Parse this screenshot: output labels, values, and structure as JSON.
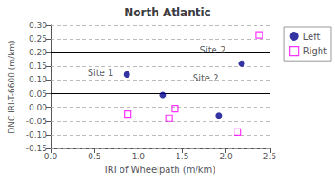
{
  "chart_data": {
    "type": "scatter",
    "title": "North Atlantic",
    "xlabel": "IRI of Wheelpath (m/km)",
    "ylabel": "DNC IRI-T-6600 (m/km)",
    "xlim": [
      0.0,
      2.5
    ],
    "ylim": [
      -0.15,
      0.3
    ],
    "xticks": [
      {
        "value": 0.0,
        "label": "0.0"
      },
      {
        "value": 0.5,
        "label": "0.5"
      },
      {
        "value": 1.0,
        "label": "1.0"
      },
      {
        "value": 1.5,
        "label": "1.5"
      },
      {
        "value": 2.0,
        "label": "2.0"
      },
      {
        "value": 2.5,
        "label": "2.5"
      }
    ],
    "yticks": [
      {
        "value": -0.15,
        "label": "-0.15"
      },
      {
        "value": -0.1,
        "label": "-0.10"
      },
      {
        "value": -0.05,
        "label": "-0.05"
      },
      {
        "value": 0.0,
        "label": "0.00"
      },
      {
        "value": 0.05,
        "label": "0.05"
      },
      {
        "value": 0.1,
        "label": "0.10"
      },
      {
        "value": 0.15,
        "label": "0.15"
      },
      {
        "value": 0.2,
        "label": "0.20"
      },
      {
        "value": 0.25,
        "label": "0.25"
      },
      {
        "value": 0.3,
        "label": "0.30"
      }
    ],
    "grid": false,
    "legend": "right",
    "series": [
      {
        "name": "Left",
        "color": "#00008B",
        "marker": "circle",
        "x": [
          0.87,
          1.28,
          1.92,
          2.18
        ],
        "values": [
          0.12,
          0.045,
          -0.03,
          0.16
        ]
      },
      {
        "name": "Right",
        "color": "#FF00FF",
        "marker": "open_square",
        "x": [
          0.88,
          1.35,
          1.42,
          2.38,
          2.13
        ],
        "values": [
          -0.025,
          -0.04,
          -0.005,
          0.265,
          -0.09
        ]
      }
    ],
    "hlines": [
      {
        "value": 0.2,
        "line_style": "solid",
        "color": "#000000"
      },
      {
        "value": 0.05,
        "line_style": "solid",
        "color": "#000000"
      },
      {
        "value": -0.15,
        "line_style": "dashed",
        "color": "#AAAAAA"
      },
      {
        "value": -0.1,
        "line_style": "dashed",
        "color": "#AAAAAA"
      },
      {
        "value": -0.05,
        "line_style": "dashed",
        "color": "#AAAAAA"
      },
      {
        "value": 0.0,
        "line_style": "dashed",
        "color": "#AAAAAA"
      },
      {
        "value": 0.1,
        "line_style": "dashed",
        "color": "#AAAAAA"
      },
      {
        "value": 0.15,
        "line_style": "dashed",
        "color": "#AAAAAA"
      },
      {
        "value": 0.25,
        "line_style": "dashed",
        "color": "#AAAAAA"
      },
      {
        "value": 0.3,
        "line_style": "dashed",
        "color": "#AAAAAA"
      }
    ],
    "annotations": [
      {
        "x": 0.42,
        "y": 0.125,
        "text": "Site 1"
      },
      {
        "x": 1.62,
        "y": 0.105,
        "text": "Site 2"
      },
      {
        "x": 1.7,
        "y": 0.21,
        "text": "Site 2"
      }
    ]
  }
}
